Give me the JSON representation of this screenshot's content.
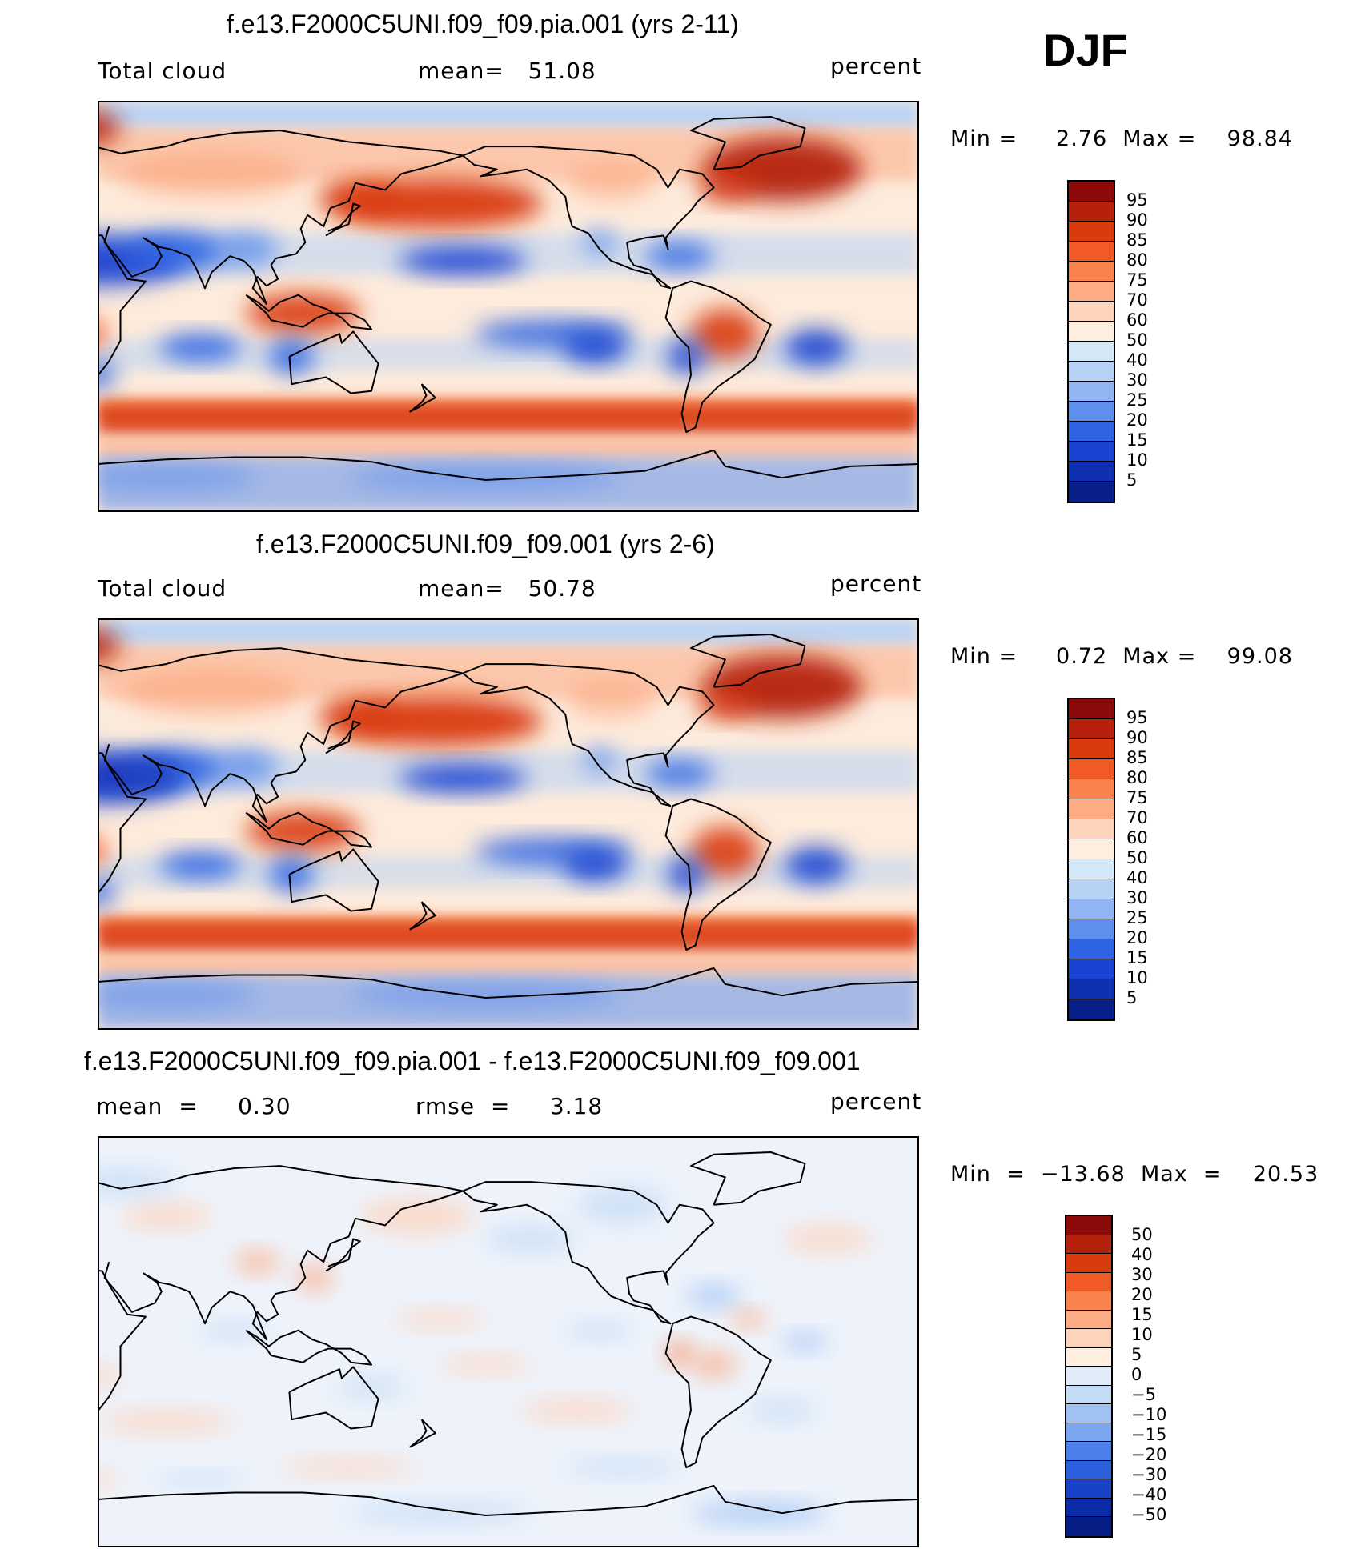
{
  "season": "DJF",
  "colors": {
    "abs_scale": [
      "#8b0a0a",
      "#b5210a",
      "#d93a0e",
      "#f15a24",
      "#f7824e",
      "#fcab85",
      "#fdd3bb",
      "#fdeedf",
      "#d5e8f7",
      "#b6d2f5",
      "#91b5f2",
      "#5f8fec",
      "#2f64e3",
      "#1a43d1",
      "#0e2fb0",
      "#081f8a"
    ],
    "diff_scale": [
      "#8b0a0a",
      "#b5210a",
      "#d93a0e",
      "#f15a24",
      "#f7824e",
      "#fcab85",
      "#fdd3bb",
      "#fdeedf",
      "#e1ecf8",
      "#c4dcf6",
      "#9fc2f3",
      "#7aa6ef",
      "#4f80e9",
      "#2a5fdd",
      "#1741c9",
      "#0a2ca8",
      "#061d85"
    ]
  },
  "panels": [
    {
      "title": "f.e13.F2000C5UNI.f09_f09.pia.001 (yrs 2-11)",
      "left_label": "Total cloud",
      "mid_label": "mean=   51.08",
      "right_label": "percent",
      "minmax": "Min =     2.76  Max =    98.84",
      "kind": "abs",
      "colorbar_labels": [
        "95",
        "90",
        "85",
        "80",
        "75",
        "70",
        "60",
        "50",
        "40",
        "30",
        "25",
        "20",
        "15",
        "10",
        "5"
      ]
    },
    {
      "title": "f.e13.F2000C5UNI.f09_f09.001 (yrs 2-6)",
      "left_label": "Total cloud",
      "mid_label": "mean=   50.78",
      "right_label": "percent",
      "minmax": "Min =     0.72  Max =    99.08",
      "kind": "abs",
      "colorbar_labels": [
        "95",
        "90",
        "85",
        "80",
        "75",
        "70",
        "60",
        "50",
        "40",
        "30",
        "25",
        "20",
        "15",
        "10",
        "5"
      ]
    },
    {
      "title": "f.e13.F2000C5UNI.f09_f09.pia.001 - f.e13.F2000C5UNI.f09_f09.001",
      "left_label": "mean  =     0.30",
      "mid_label": "rmse  =     3.18",
      "right_label": "percent",
      "minmax": "Min  =  −13.68  Max  =    20.53",
      "kind": "diff",
      "colorbar_labels": [
        "50",
        "40",
        "30",
        "20",
        "15",
        "10",
        "5",
        "0",
        "−5",
        "−10",
        "−15",
        "−20",
        "−30",
        "−40",
        "−50"
      ]
    }
  ]
}
